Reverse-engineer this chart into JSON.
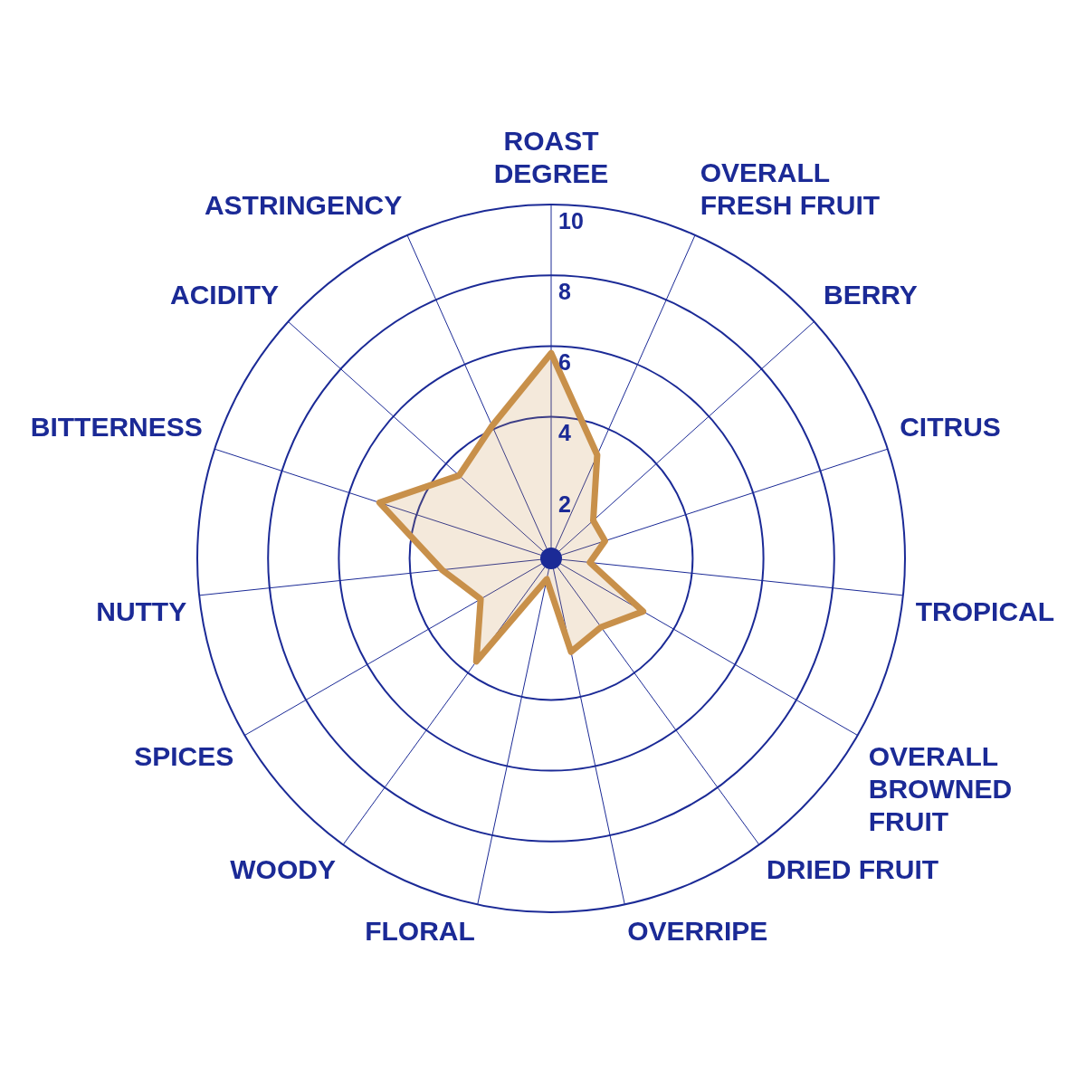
{
  "chart_data": {
    "type": "radar",
    "categories": [
      "ROAST DEGREE",
      "OVERALL FRESH FRUIT",
      "BERRY",
      "CITRUS",
      "TROPICAL",
      "OVERALL BROWNED FRUIT",
      "DRIED FRUIT",
      "OVERRIPE",
      "FLORAL",
      "WOODY",
      "SPICES",
      "NUTTY",
      "BITTERNESS",
      "ACIDITY",
      "ASTRINGENCY"
    ],
    "series": [
      {
        "color": "#c8904a",
        "values": [
          5.8,
          3.2,
          1.6,
          1.6,
          1.1,
          3.0,
          2.4,
          2.7,
          0.6,
          3.6,
          2.3,
          3.1,
          5.1,
          3.5,
          4.1
        ]
      }
    ],
    "ylim": [
      0,
      10
    ],
    "yticks": [
      2,
      4,
      6,
      8,
      10
    ],
    "grid": true,
    "legend": false,
    "marker": "none"
  }
}
